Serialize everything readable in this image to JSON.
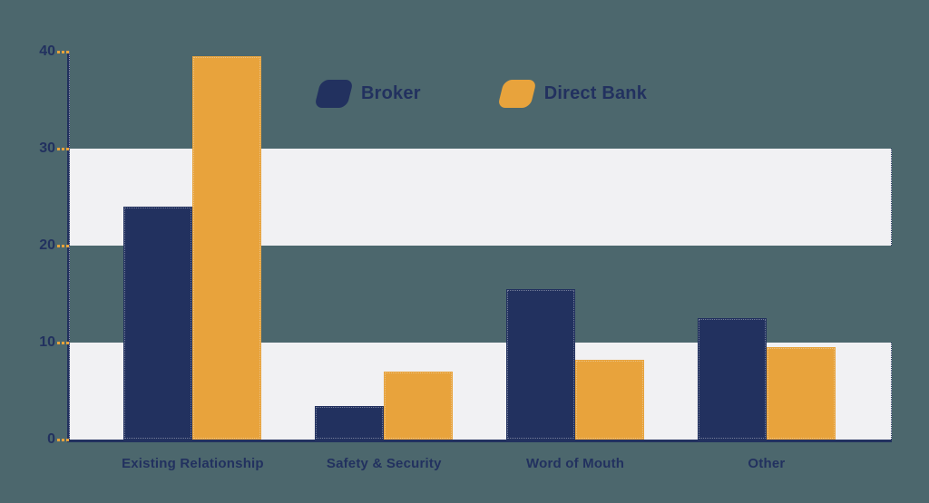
{
  "page": {
    "background": "#4c676d",
    "text_color": "#22315f"
  },
  "chart_data": {
    "type": "bar",
    "title": "",
    "xlabel": "",
    "ylabel": "",
    "categories": [
      "Existing Relationship",
      "Safety & Security",
      "Word of Mouth",
      "Other"
    ],
    "series": [
      {
        "name": "Broker",
        "color": "#22315f",
        "values": [
          24,
          3.5,
          15.5,
          12.5
        ]
      },
      {
        "name": "Direct Bank",
        "color": "#e8a33c",
        "values": [
          39.5,
          7,
          8.2,
          9.5
        ]
      }
    ],
    "ylim": [
      0,
      40
    ],
    "yticks": [
      "0",
      "10",
      "20",
      "30",
      "40"
    ],
    "ytick_values": [
      0,
      10,
      20,
      30,
      40
    ],
    "grid": "alternating horizontal stripe bands",
    "stripe_bands": [
      [
        0,
        10
      ],
      [
        20,
        30
      ]
    ],
    "stripe_color": "#f1f1f3",
    "axis_color": "#22315f",
    "tick_dash_color": "#e8a33c",
    "legend_position": "top-center"
  }
}
